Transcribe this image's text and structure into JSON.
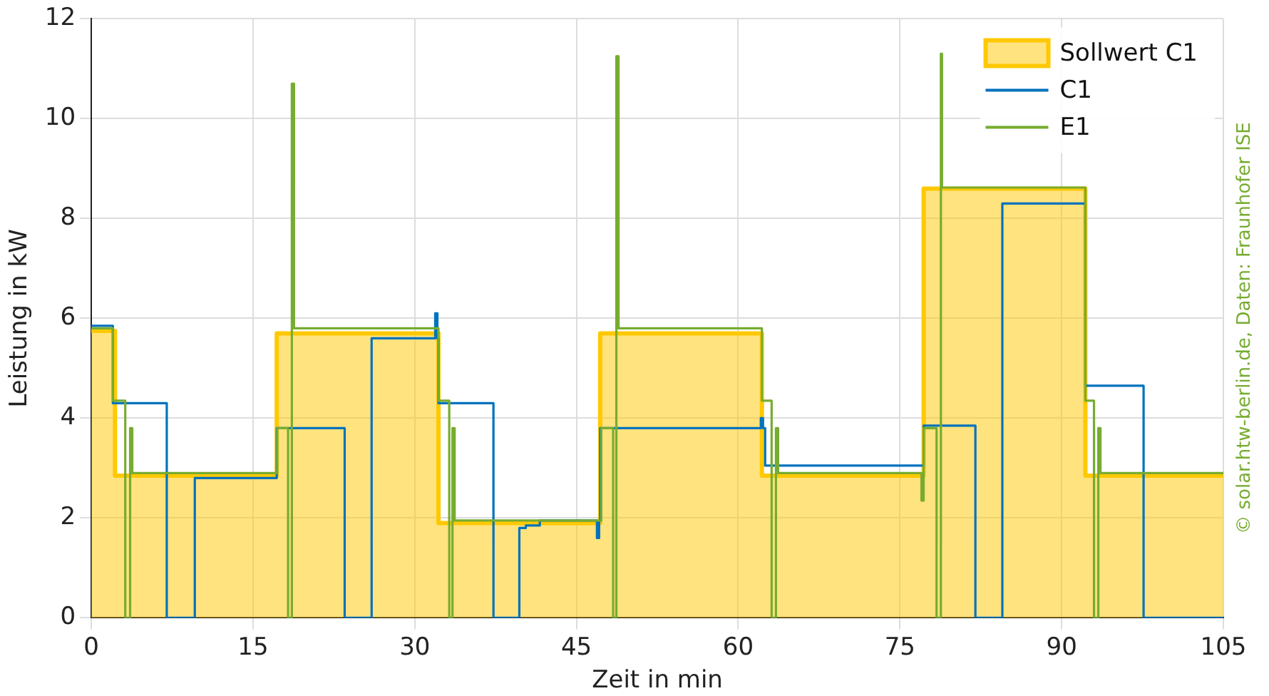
{
  "chart_data": {
    "type": "step",
    "xlabel": "Zeit in min",
    "ylabel": "Leistung in kW",
    "xlim": [
      0,
      105
    ],
    "xticks": [
      0,
      15,
      30,
      45,
      60,
      75,
      90,
      105
    ],
    "ylim": [
      0,
      12
    ],
    "yticks": [
      0,
      2,
      4,
      6,
      8,
      10,
      12
    ],
    "grid": true,
    "legend": "top right",
    "annotations": [
      "© solar.htw-berlin.de, Daten: Fraunhofer ISE"
    ],
    "series": [
      {
        "name": "Sollwert C1",
        "type": "area",
        "color": "#ffc800",
        "x": [
          0,
          2.2,
          2.2,
          17.2,
          17.2,
          32.2,
          32.2,
          47.2,
          47.2,
          62.2,
          62.2,
          77.2,
          77.2,
          92.2,
          92.2,
          105
        ],
        "values": [
          5.75,
          5.75,
          2.85,
          2.85,
          5.7,
          5.7,
          1.9,
          1.9,
          5.7,
          5.7,
          2.85,
          2.85,
          8.6,
          8.6,
          2.85,
          2.85
        ]
      },
      {
        "name": "C1",
        "color": "#0072bd",
        "x": [
          0,
          2,
          7,
          9.6,
          17.2,
          23.5,
          26,
          31.9,
          32.1,
          32.2,
          37.3,
          39.7,
          40.3,
          41.6,
          46.9,
          47.1,
          47.2,
          62.1,
          62.3,
          62.5,
          77.2,
          82,
          84.5,
          92.2,
          97.6,
          105
        ],
        "values": [
          5.85,
          4.3,
          0,
          2.8,
          3.8,
          0,
          5.6,
          6.1,
          5.6,
          4.3,
          0,
          1.8,
          1.85,
          1.95,
          1.6,
          1.95,
          3.8,
          4.0,
          3.8,
          3.05,
          3.85,
          0,
          8.3,
          4.65,
          0,
          0
        ]
      },
      {
        "name": "E1",
        "color": "#77ac30",
        "x": [
          0,
          2,
          3.15,
          3.6,
          3.8,
          17.25,
          18.25,
          18.6,
          18.8,
          32.2,
          33.2,
          33.5,
          33.7,
          47.3,
          48.4,
          48.7,
          48.9,
          62.2,
          63.1,
          63.5,
          63.7,
          77.0,
          77.2,
          78.4,
          78.8,
          78.9,
          92.2,
          93,
          93.4,
          93.6,
          105
        ],
        "values": [
          5.8,
          4.35,
          0,
          3.8,
          2.9,
          3.8,
          0,
          10.7,
          5.8,
          4.35,
          0,
          3.8,
          1.95,
          3.8,
          0,
          11.25,
          5.8,
          4.35,
          0,
          3.8,
          2.9,
          2.35,
          3.8,
          0,
          11.3,
          8.62,
          4.35,
          0,
          3.8,
          2.9,
          2.9
        ]
      }
    ]
  }
}
